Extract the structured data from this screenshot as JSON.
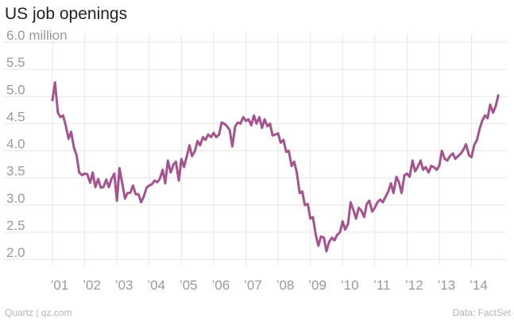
{
  "title": "US job openings",
  "footer": {
    "source_left": "Quartz | qz.com",
    "source_right": "Data: FactSet"
  },
  "colors": {
    "line": "#a5538e",
    "grid": "#e6e6e6",
    "tick_text": "#9a9a9a"
  },
  "chart_data": {
    "type": "line",
    "title": "US job openings",
    "xlabel": "",
    "ylabel": "",
    "y_unit_label": "million",
    "ylim": [
      2.0,
      6.0
    ],
    "xlim": [
      2001.0,
      2014.85
    ],
    "grid": true,
    "y_ticks": [
      {
        "value": 6.0,
        "label": "6.0 million"
      },
      {
        "value": 5.5,
        "label": "5.5"
      },
      {
        "value": 5.0,
        "label": "5.0"
      },
      {
        "value": 4.5,
        "label": "4.5"
      },
      {
        "value": 4.0,
        "label": "4.0"
      },
      {
        "value": 3.5,
        "label": "3.5"
      },
      {
        "value": 3.0,
        "label": "3.0"
      },
      {
        "value": 2.5,
        "label": "2.5"
      },
      {
        "value": 2.0,
        "label": "2.0"
      }
    ],
    "x_ticks": [
      {
        "value": 2001,
        "label": "’01"
      },
      {
        "value": 2002,
        "label": "’02"
      },
      {
        "value": 2003,
        "label": "’03"
      },
      {
        "value": 2004,
        "label": "’04"
      },
      {
        "value": 2005,
        "label": "’05"
      },
      {
        "value": 2006,
        "label": "’06"
      },
      {
        "value": 2007,
        "label": "’07"
      },
      {
        "value": 2008,
        "label": "’08"
      },
      {
        "value": 2009,
        "label": "’09"
      },
      {
        "value": 2010,
        "label": "’10"
      },
      {
        "value": 2011,
        "label": "’11"
      },
      {
        "value": 2012,
        "label": "’12"
      },
      {
        "value": 2013,
        "label": "’13"
      },
      {
        "value": 2014,
        "label": "’14"
      }
    ],
    "series": [
      {
        "points": [
          [
            2001.0,
            4.93
          ],
          [
            2001.08,
            5.26
          ],
          [
            2001.17,
            4.7
          ],
          [
            2001.25,
            4.62
          ],
          [
            2001.33,
            4.65
          ],
          [
            2001.42,
            4.45
          ],
          [
            2001.5,
            4.22
          ],
          [
            2001.58,
            4.35
          ],
          [
            2001.67,
            4.05
          ],
          [
            2001.75,
            3.92
          ],
          [
            2001.83,
            3.6
          ],
          [
            2001.92,
            3.55
          ],
          [
            2002.0,
            3.58
          ],
          [
            2002.08,
            3.57
          ],
          [
            2002.17,
            3.41
          ],
          [
            2002.25,
            3.6
          ],
          [
            2002.33,
            3.33
          ],
          [
            2002.42,
            3.48
          ],
          [
            2002.5,
            3.32
          ],
          [
            2002.58,
            3.33
          ],
          [
            2002.67,
            3.47
          ],
          [
            2002.75,
            3.33
          ],
          [
            2002.83,
            3.48
          ],
          [
            2002.92,
            3.58
          ],
          [
            2003.0,
            3.08
          ],
          [
            2003.08,
            3.68
          ],
          [
            2003.17,
            3.38
          ],
          [
            2003.25,
            3.12
          ],
          [
            2003.33,
            3.22
          ],
          [
            2003.42,
            3.23
          ],
          [
            2003.5,
            3.36
          ],
          [
            2003.58,
            3.2
          ],
          [
            2003.67,
            3.2
          ],
          [
            2003.75,
            3.05
          ],
          [
            2003.83,
            3.15
          ],
          [
            2003.92,
            3.32
          ],
          [
            2004.0,
            3.36
          ],
          [
            2004.08,
            3.38
          ],
          [
            2004.17,
            3.45
          ],
          [
            2004.25,
            3.42
          ],
          [
            2004.33,
            3.48
          ],
          [
            2004.42,
            3.65
          ],
          [
            2004.5,
            3.4
          ],
          [
            2004.58,
            3.82
          ],
          [
            2004.67,
            3.6
          ],
          [
            2004.75,
            3.74
          ],
          [
            2004.83,
            3.8
          ],
          [
            2004.92,
            3.45
          ],
          [
            2005.0,
            3.85
          ],
          [
            2005.08,
            3.7
          ],
          [
            2005.17,
            3.9
          ],
          [
            2005.25,
            4.1
          ],
          [
            2005.33,
            3.9
          ],
          [
            2005.42,
            4.0
          ],
          [
            2005.5,
            4.18
          ],
          [
            2005.58,
            4.1
          ],
          [
            2005.67,
            4.25
          ],
          [
            2005.75,
            4.2
          ],
          [
            2005.83,
            4.3
          ],
          [
            2005.92,
            4.25
          ],
          [
            2006.0,
            4.33
          ],
          [
            2006.08,
            4.25
          ],
          [
            2006.17,
            4.3
          ],
          [
            2006.25,
            4.52
          ],
          [
            2006.33,
            4.5
          ],
          [
            2006.42,
            4.45
          ],
          [
            2006.5,
            4.38
          ],
          [
            2006.58,
            4.08
          ],
          [
            2006.67,
            4.45
          ],
          [
            2006.75,
            4.52
          ],
          [
            2006.83,
            4.5
          ],
          [
            2006.92,
            4.62
          ],
          [
            2007.0,
            4.55
          ],
          [
            2007.08,
            4.58
          ],
          [
            2007.17,
            4.47
          ],
          [
            2007.25,
            4.65
          ],
          [
            2007.33,
            4.5
          ],
          [
            2007.42,
            4.62
          ],
          [
            2007.5,
            4.42
          ],
          [
            2007.58,
            4.58
          ],
          [
            2007.67,
            4.45
          ],
          [
            2007.75,
            4.5
          ],
          [
            2007.83,
            4.28
          ],
          [
            2007.92,
            4.3
          ],
          [
            2008.0,
            4.32
          ],
          [
            2008.08,
            4.15
          ],
          [
            2008.17,
            4.2
          ],
          [
            2008.25,
            3.98
          ],
          [
            2008.33,
            4.0
          ],
          [
            2008.42,
            3.72
          ],
          [
            2008.5,
            3.8
          ],
          [
            2008.58,
            3.6
          ],
          [
            2008.67,
            3.22
          ],
          [
            2008.75,
            3.25
          ],
          [
            2008.83,
            3.0
          ],
          [
            2008.92,
            3.02
          ],
          [
            2009.0,
            2.75
          ],
          [
            2009.08,
            2.78
          ],
          [
            2009.17,
            2.45
          ],
          [
            2009.25,
            2.25
          ],
          [
            2009.33,
            2.42
          ],
          [
            2009.42,
            2.4
          ],
          [
            2009.5,
            2.15
          ],
          [
            2009.58,
            2.32
          ],
          [
            2009.67,
            2.4
          ],
          [
            2009.75,
            2.35
          ],
          [
            2009.83,
            2.45
          ],
          [
            2009.92,
            2.5
          ],
          [
            2010.0,
            2.7
          ],
          [
            2010.08,
            2.55
          ],
          [
            2010.17,
            2.65
          ],
          [
            2010.25,
            3.05
          ],
          [
            2010.33,
            2.92
          ],
          [
            2010.42,
            2.75
          ],
          [
            2010.5,
            2.95
          ],
          [
            2010.58,
            2.9
          ],
          [
            2010.67,
            2.78
          ],
          [
            2010.75,
            3.02
          ],
          [
            2010.83,
            3.08
          ],
          [
            2010.92,
            2.88
          ],
          [
            2011.0,
            2.95
          ],
          [
            2011.08,
            3.05
          ],
          [
            2011.17,
            3.1
          ],
          [
            2011.25,
            3.05
          ],
          [
            2011.33,
            3.15
          ],
          [
            2011.42,
            3.25
          ],
          [
            2011.5,
            3.4
          ],
          [
            2011.58,
            3.22
          ],
          [
            2011.67,
            3.52
          ],
          [
            2011.75,
            3.42
          ],
          [
            2011.83,
            3.22
          ],
          [
            2011.92,
            3.55
          ],
          [
            2012.0,
            3.58
          ],
          [
            2012.08,
            3.52
          ],
          [
            2012.17,
            3.82
          ],
          [
            2012.25,
            3.62
          ],
          [
            2012.33,
            3.7
          ],
          [
            2012.42,
            3.82
          ],
          [
            2012.5,
            3.65
          ],
          [
            2012.58,
            3.7
          ],
          [
            2012.67,
            3.6
          ],
          [
            2012.75,
            3.72
          ],
          [
            2012.83,
            3.7
          ],
          [
            2012.92,
            3.65
          ],
          [
            2013.0,
            3.72
          ],
          [
            2013.08,
            4.0
          ],
          [
            2013.17,
            3.85
          ],
          [
            2013.25,
            3.82
          ],
          [
            2013.33,
            3.9
          ],
          [
            2013.42,
            3.95
          ],
          [
            2013.5,
            3.85
          ],
          [
            2013.58,
            3.9
          ],
          [
            2013.67,
            3.95
          ],
          [
            2013.75,
            4.02
          ],
          [
            2013.83,
            4.12
          ],
          [
            2013.92,
            3.92
          ],
          [
            2014.0,
            3.88
          ],
          [
            2014.08,
            4.1
          ],
          [
            2014.17,
            4.2
          ],
          [
            2014.25,
            4.4
          ],
          [
            2014.33,
            4.55
          ],
          [
            2014.42,
            4.65
          ],
          [
            2014.5,
            4.6
          ],
          [
            2014.58,
            4.85
          ],
          [
            2014.67,
            4.7
          ],
          [
            2014.75,
            4.82
          ],
          [
            2014.83,
            5.02
          ]
        ]
      }
    ]
  }
}
